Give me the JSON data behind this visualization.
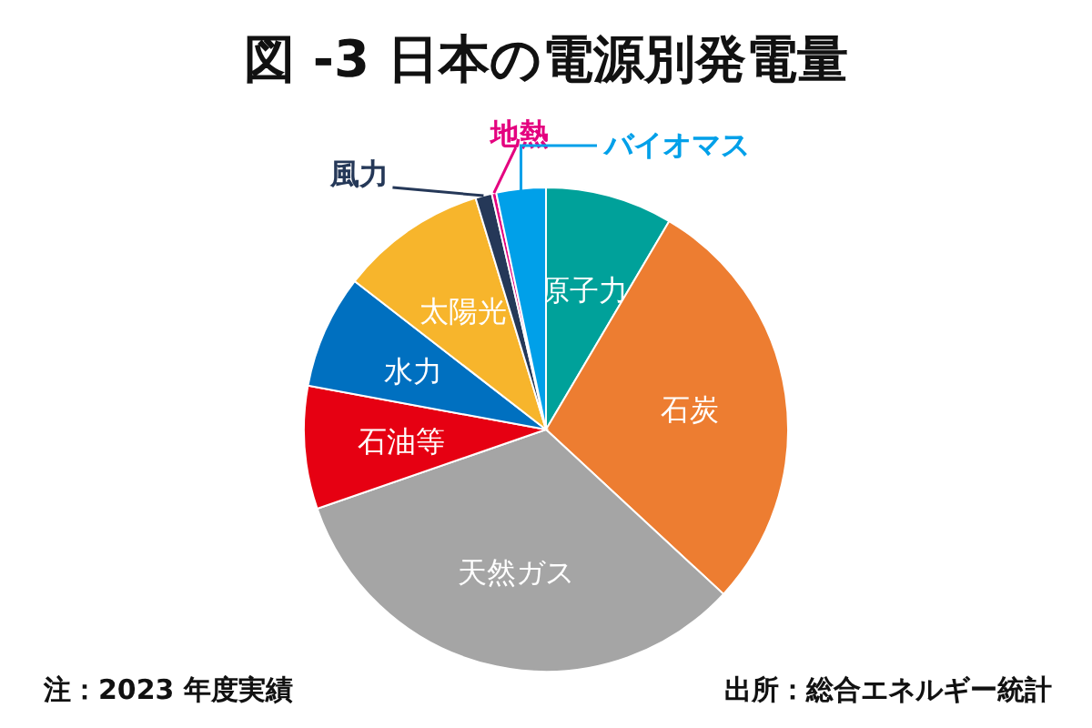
{
  "chart_data": {
    "type": "pie",
    "title": "図 -3 日本の電源別発電量",
    "categories": [
      "原子力",
      "石炭",
      "天然ガス",
      "石油等",
      "水力",
      "太陽光",
      "風力",
      "地熱",
      "バイオマス"
    ],
    "values": [
      8.5,
      28.4,
      32.8,
      8.2,
      7.6,
      9.8,
      1.1,
      0.3,
      3.3
    ],
    "colors": [
      "#00a19a",
      "#ed7d31",
      "#a5a5a5",
      "#e60012",
      "#0070c0",
      "#f7b52c",
      "#253858",
      "#e4007f",
      "#00a0e9"
    ],
    "annotations": [
      "注：2023 年度実績",
      "出所：総合エネルギー統計"
    ]
  }
}
